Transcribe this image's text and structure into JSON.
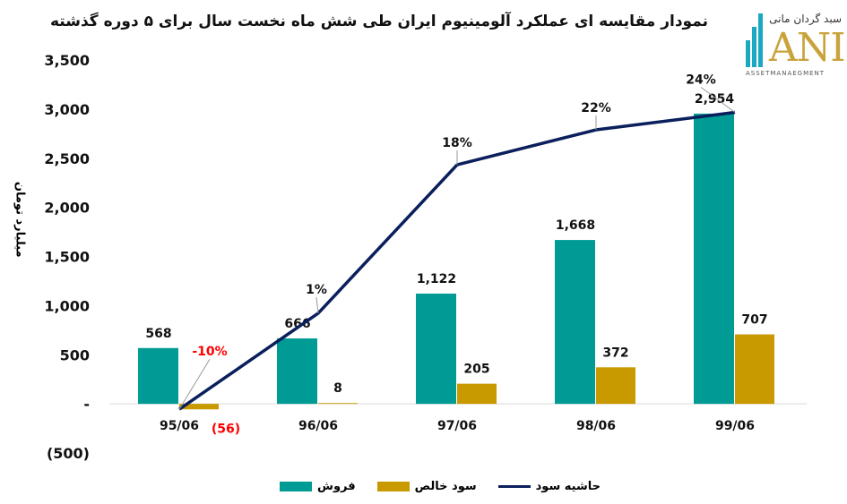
{
  "chart_data": {
    "type": "bar",
    "title": "نمودار مقایسه ای عملکرد آلومینیوم ایران طی شش ماه نخست سال برای ۵ دوره گذشته",
    "ylabel": "میلیارد تومان",
    "xlabel": "",
    "categories": [
      "95/06",
      "96/06",
      "97/06",
      "98/06",
      "99/06"
    ],
    "ylim": [
      -500,
      3500
    ],
    "yticks": [
      -500,
      0,
      500,
      1000,
      1500,
      2000,
      2500,
      3000,
      3500
    ],
    "ytick_labels": [
      "(500)",
      "-",
      "500",
      "1,000",
      "1,500",
      "2,000",
      "2,500",
      "3,000",
      "3,500"
    ],
    "series": [
      {
        "name": "فروش",
        "type": "bar",
        "color": "#009B95",
        "values": [
          568,
          666,
          1122,
          1668,
          2954
        ],
        "labels": [
          "568",
          "666",
          "1,122",
          "1,668",
          "2,954"
        ]
      },
      {
        "name": "سود خالص",
        "type": "bar",
        "color": "#C99A00",
        "values": [
          -56,
          8,
          205,
          372,
          707
        ],
        "labels": [
          "(56)",
          "8",
          "205",
          "372",
          "707"
        ]
      },
      {
        "name": "حاشیه سود",
        "type": "line",
        "axis": "secondary",
        "color": "#0A1F5C",
        "values": [
          -10,
          1,
          18,
          22,
          24
        ],
        "labels": [
          "-10%",
          "1%",
          "18%",
          "22%",
          "24%"
        ]
      }
    ],
    "secondary_ylim": [
      -15,
      30
    ],
    "negative_label_color": "#FF0000",
    "grid": false,
    "legend": "bottom-center"
  },
  "logo": {
    "fa": "سبد گردان مانی",
    "mark": "ANI",
    "sub": "ASSETMANAEGMENT"
  }
}
